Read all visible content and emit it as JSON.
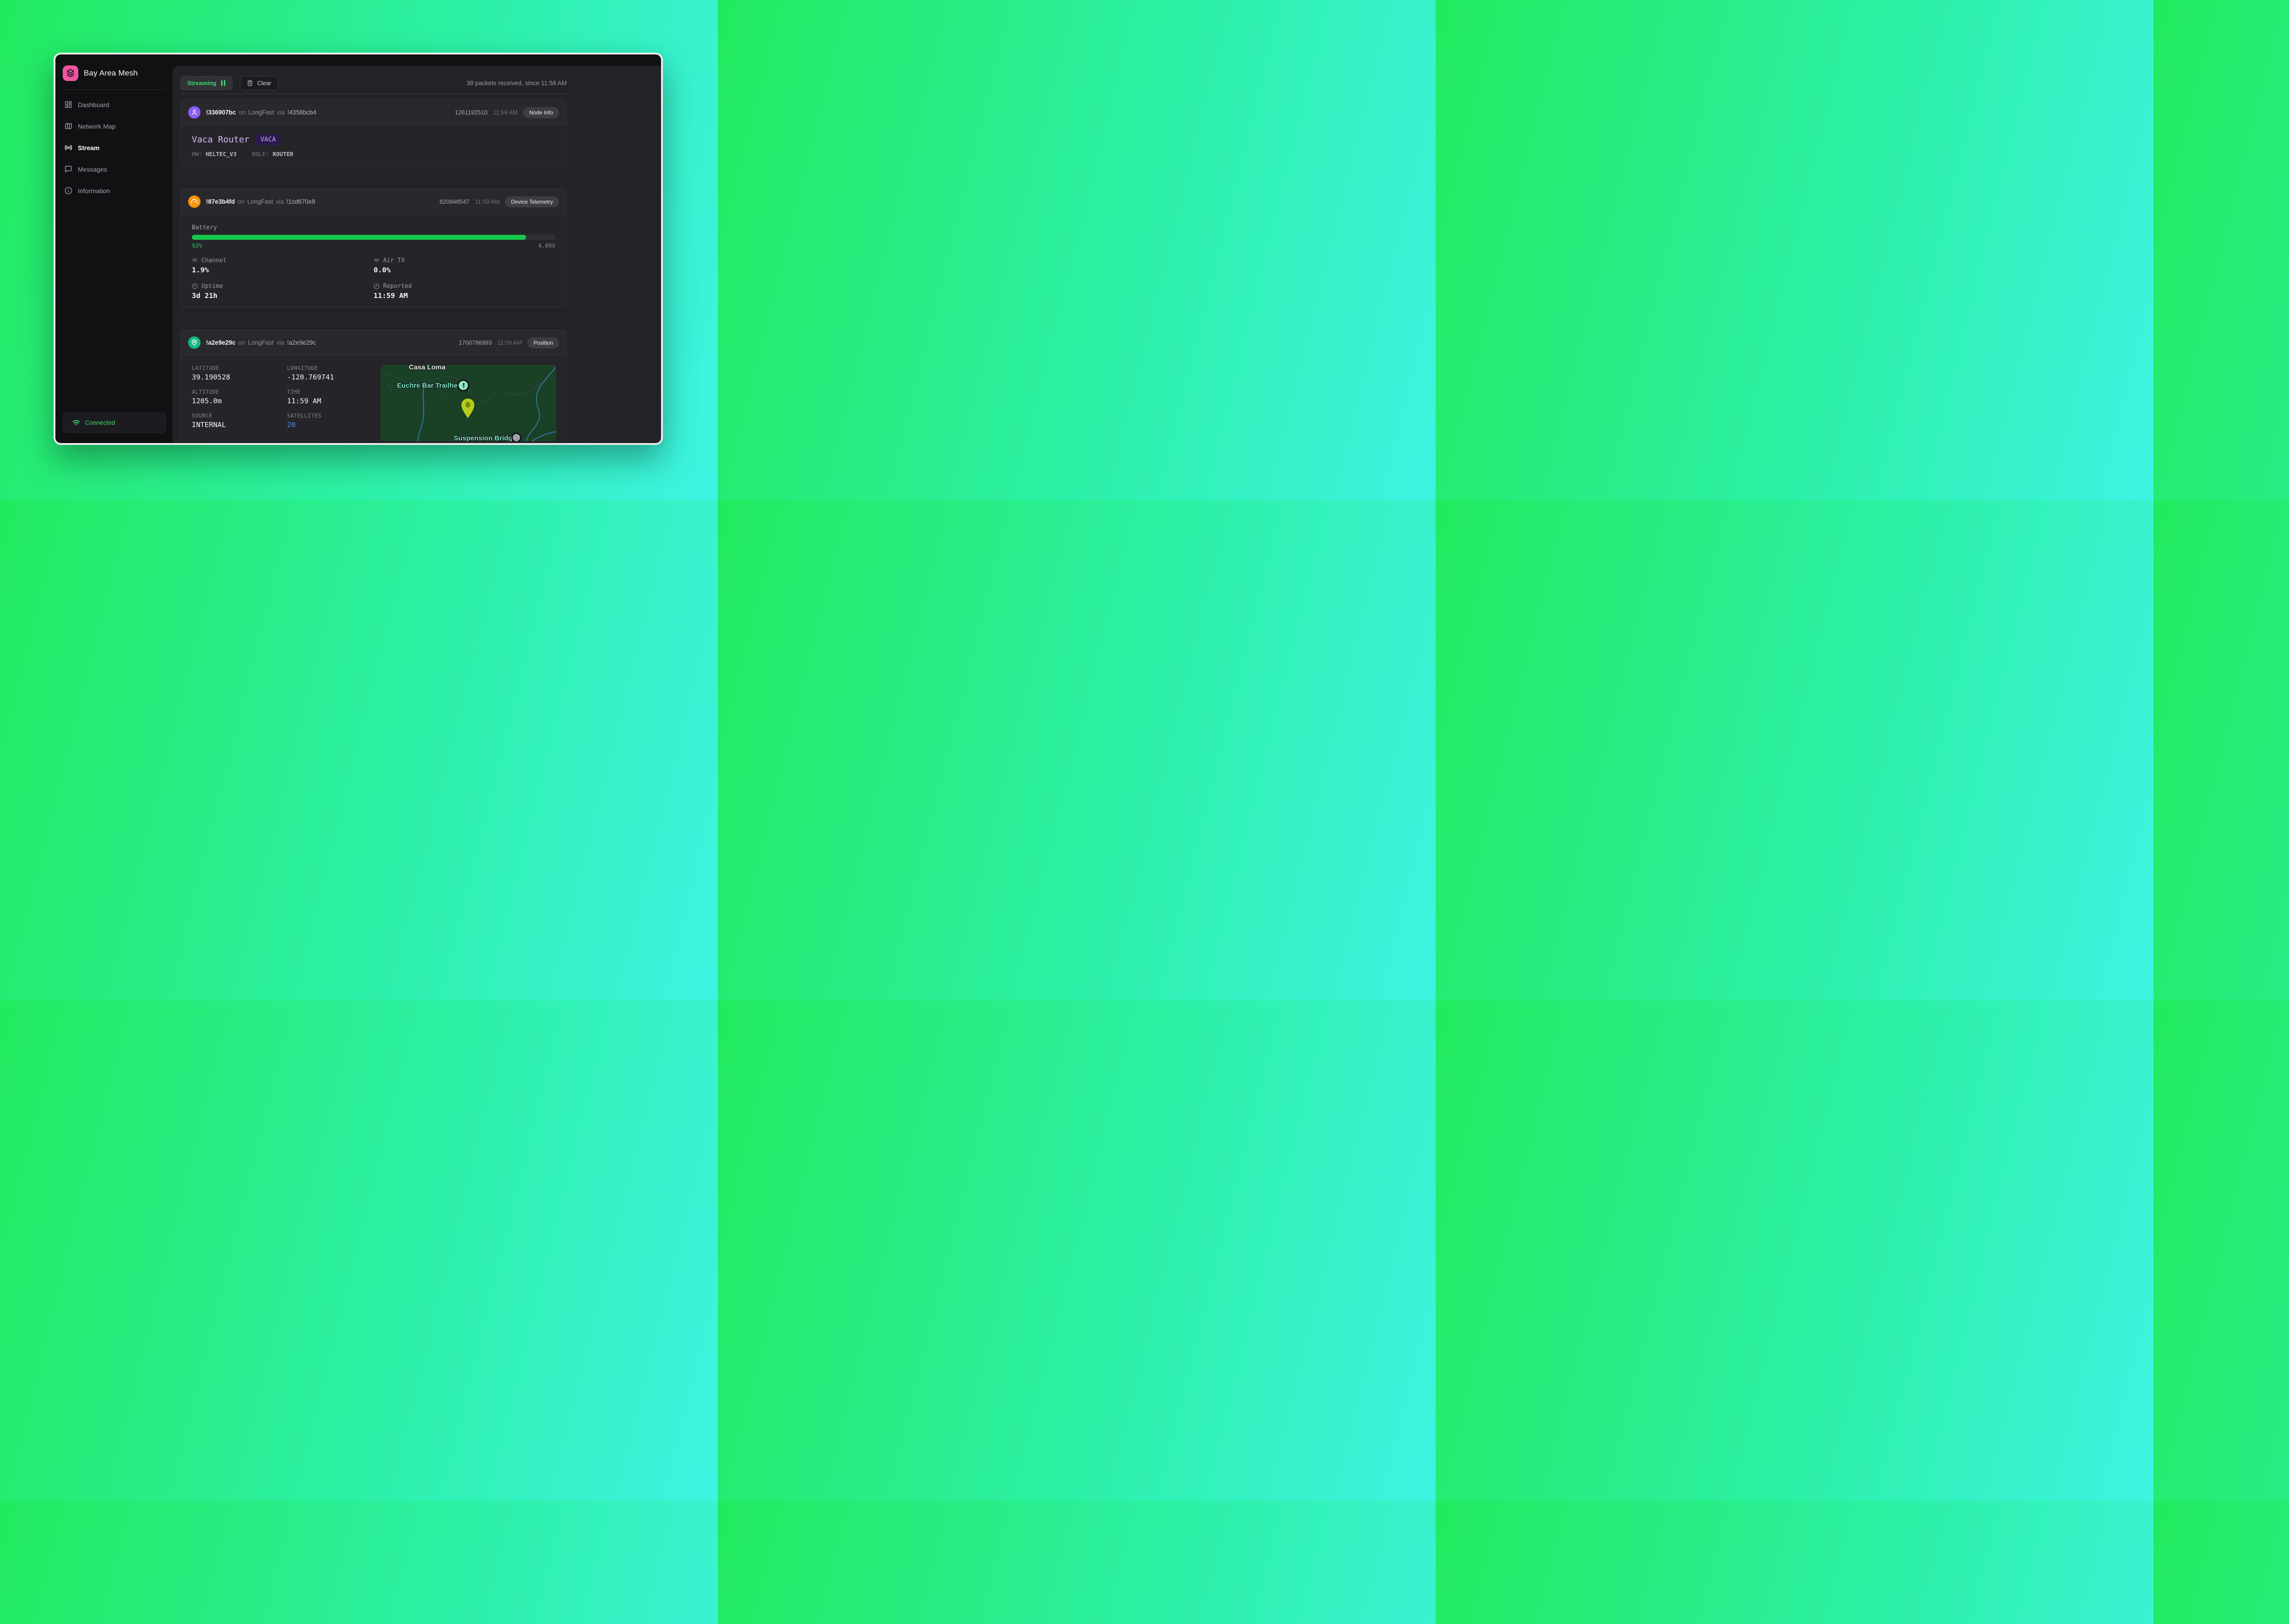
{
  "app": {
    "title": "Bay Area Mesh"
  },
  "sidebar": {
    "items": [
      {
        "label": "Dashboard",
        "icon": "dashboard-grid-icon",
        "active": false
      },
      {
        "label": "Network Map",
        "icon": "map-icon",
        "active": false
      },
      {
        "label": "Stream",
        "icon": "broadcast-icon",
        "active": true
      },
      {
        "label": "Messages",
        "icon": "chat-bubble-icon",
        "active": false
      },
      {
        "label": "Information",
        "icon": "info-circle-icon",
        "active": false
      }
    ],
    "status": {
      "label": "Connected",
      "icon": "wifi-icon"
    }
  },
  "toolbar": {
    "streaming_label": "Streaming",
    "clear_label": "Clear",
    "status_text": "38 packets received, since 11:58 AM"
  },
  "packets": [
    {
      "from": "!336907bc",
      "on_text": "on",
      "channel": "LongFast",
      "via_text": "via",
      "via": "!4358bcb4",
      "packet_id": "1261192510",
      "time": "11:59 AM",
      "type": "Node Info",
      "avatar_icon": "user-icon",
      "node": {
        "long_name": "Vaca Router",
        "short_name": "VACA",
        "hw_label": "HW:",
        "hw": "HELTEC_V3",
        "role_label": "ROLE:",
        "role": "ROUTER"
      }
    },
    {
      "from": "!87e3b4fd",
      "on_text": "on",
      "channel": "LongFast",
      "via_text": "via",
      "via": "!1cd670e8",
      "packet_id": "820948547",
      "time": "11:59 AM",
      "type": "Device Telemetry",
      "avatar_icon": "gauge-icon",
      "telemetry": {
        "battery_label": "Battery",
        "battery_pct_value": 92,
        "battery_pct": "92%",
        "voltage": "4.09V",
        "stats": [
          {
            "icon": "wifi-icon",
            "label": "Channel",
            "value": "1.9%"
          },
          {
            "icon": "wifi-icon",
            "label": "Air TX",
            "value": "0.0%"
          },
          {
            "icon": "clock-icon",
            "label": "Uptime",
            "value": "3d 21h"
          },
          {
            "icon": "clock-icon",
            "label": "Reported",
            "value": "11:59 AM"
          }
        ]
      }
    },
    {
      "from": "!a2e9e29c",
      "on_text": "on",
      "channel": "LongFast",
      "via_text": "via",
      "via": "!a2e9e29c",
      "packet_id": "1700786993",
      "time": "11:59 AM",
      "type": "Position",
      "avatar_icon": "map-pin-icon",
      "position": {
        "fields": [
          {
            "label": "LATITUDE",
            "value": "39.190528"
          },
          {
            "label": "LONGITUDE",
            "value": "-120.769741"
          },
          {
            "label": "ALTITUDE",
            "value": "1205.0m"
          },
          {
            "label": "TIME",
            "value": "11:59 AM"
          },
          {
            "label": "SOURCE",
            "value": "INTERNAL"
          },
          {
            "label": "SATELLITES",
            "value": "20",
            "highlight": "blue"
          }
        ],
        "map": {
          "labels": [
            {
              "text": "Casa Loma",
              "style": "white"
            },
            {
              "text": "Euchre Bar Trailhead",
              "style": "teal",
              "icon": "hiker-icon"
            },
            {
              "text": "Suspension Bridge",
              "style": "teal",
              "icon": "bridge-icon"
            }
          ],
          "marker_icon": "location-pin-icon"
        }
      }
    }
  ],
  "colors": {
    "accent_green": "#3fd56f",
    "battery_fill": "#17c64c",
    "avatar_purple": "#8b5cf6",
    "avatar_orange": "#f8920c",
    "avatar_green": "#13b981",
    "satellites_blue": "#4a8ceb",
    "pin_yellow": "#b7cb1d",
    "map_green": "#1a4026",
    "brand_pink": "#f0569f"
  }
}
